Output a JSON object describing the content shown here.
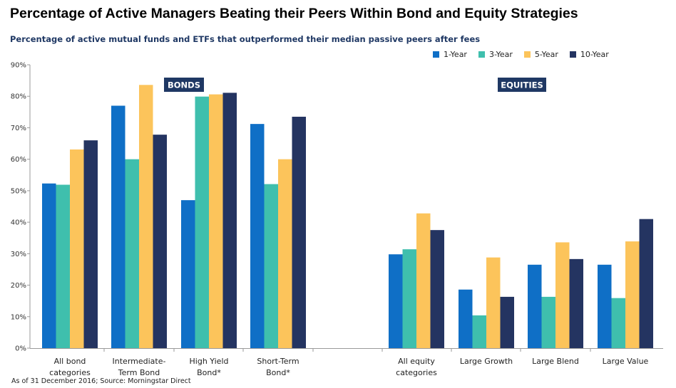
{
  "title": "Percentage of Active Managers Beating their Peers Within Bond and Equity Strategies",
  "subtitle": "Percentage of active mutual funds and ETFs that outperformed their median passive peers after fees",
  "source": "As of 31 December 2016; Source: Morningstar Direct",
  "chart_data": {
    "type": "bar",
    "title": "Percentage of Active Managers Beating their Peers Within Bond and Equity Strategies",
    "subtitle": "Percentage of active mutual funds and ETFs that outperformed their median passive peers after fees",
    "xlabel": "",
    "ylabel": "",
    "ylim": [
      0,
      90
    ],
    "yticks": [
      "0%",
      "10%",
      "20%",
      "30%",
      "40%",
      "50%",
      "60%",
      "70%",
      "80%",
      "90%"
    ],
    "grid": false,
    "legend_position": "top-right",
    "groups": [
      {
        "label": "BONDS",
        "categories": [
          0,
          1,
          2,
          3
        ]
      },
      {
        "label": "EQUITIES",
        "categories": [
          4,
          5,
          6,
          7
        ]
      }
    ],
    "categories": [
      [
        "All bond",
        "categories"
      ],
      [
        "Intermediate-",
        "Term Bond"
      ],
      [
        "High Yield",
        "Bond*"
      ],
      [
        "Short-Term",
        "Bond*"
      ],
      [
        "All equity",
        "categories"
      ],
      [
        "Large Growth"
      ],
      [
        "Large Blend"
      ],
      [
        "Large Value"
      ]
    ],
    "series": [
      {
        "name": "1-Year",
        "color": "#0f6fc6",
        "values": [
          52.3,
          77.0,
          47.0,
          71.2,
          29.8,
          18.6,
          26.5,
          26.5
        ]
      },
      {
        "name": "3-Year",
        "color": "#3fbfad",
        "values": [
          51.9,
          60.0,
          79.9,
          52.1,
          31.4,
          10.4,
          16.3,
          15.9
        ]
      },
      {
        "name": "5-Year",
        "color": "#fcc45b",
        "values": [
          63.1,
          83.6,
          80.6,
          60.0,
          42.8,
          28.8,
          33.6,
          33.9
        ]
      },
      {
        "name": "10-Year",
        "color": "#243461",
        "values": [
          66.0,
          67.8,
          81.1,
          73.5,
          37.5,
          16.3,
          28.3,
          41.0
        ]
      }
    ],
    "group_label_color": "#1f3864"
  }
}
